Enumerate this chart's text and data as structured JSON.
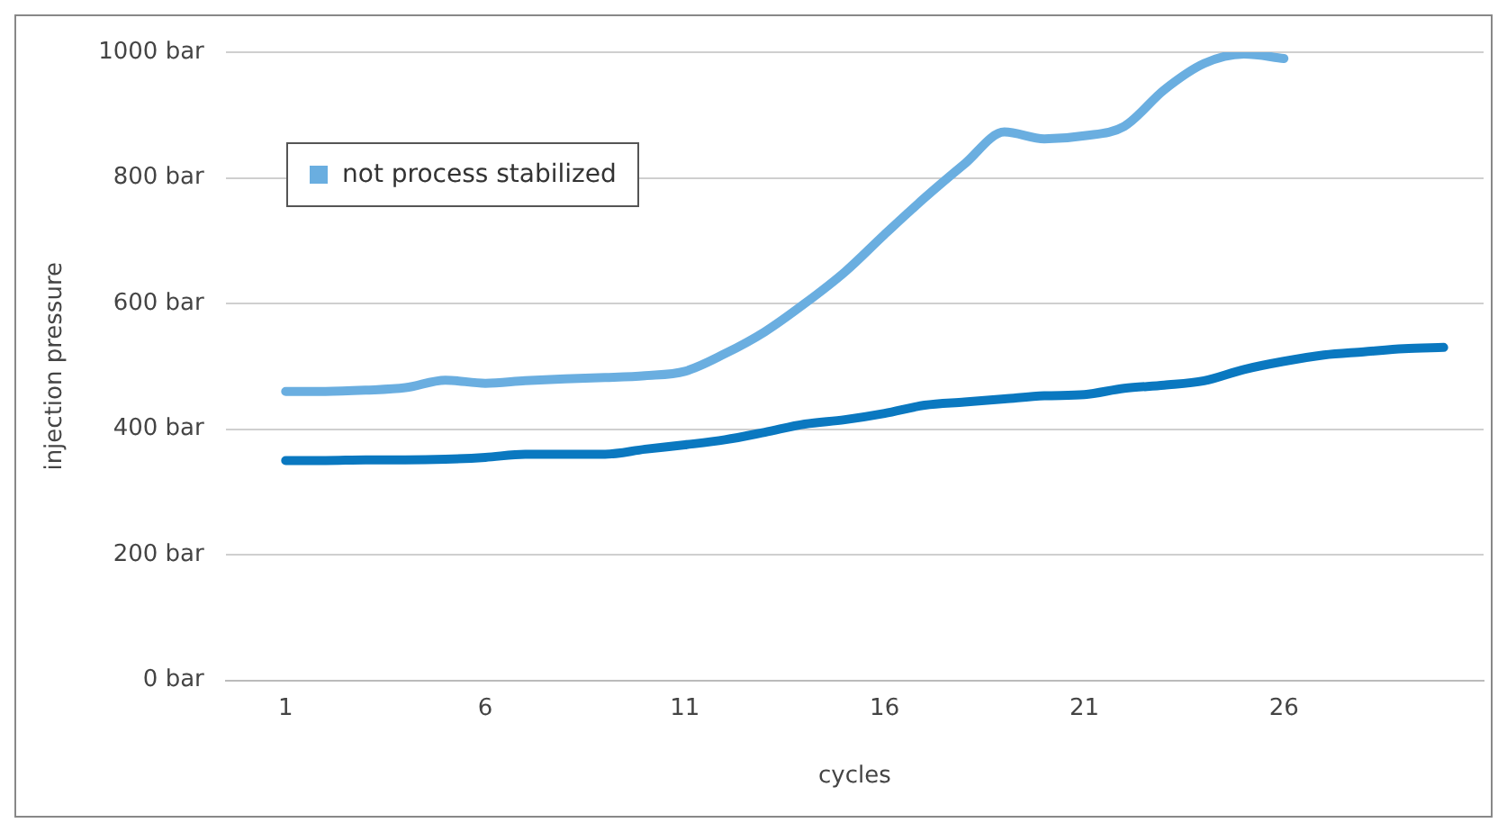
{
  "chart_data": {
    "type": "line",
    "xlabel": "cycles",
    "ylabel": "injection pressure",
    "xlim": [
      -0.5,
      31
    ],
    "xticks": [
      1,
      6,
      11,
      16,
      21,
      26
    ],
    "ylim": [
      0,
      1000
    ],
    "yticks": [
      {
        "value": 0,
        "label": "0 bar"
      },
      {
        "value": 200,
        "label": "200 bar"
      },
      {
        "value": 400,
        "label": "400 bar"
      },
      {
        "value": 600,
        "label": "600 bar"
      },
      {
        "value": 800,
        "label": "800 bar"
      },
      {
        "value": 1000,
        "label": "1000 bar"
      }
    ],
    "grid": "y",
    "legend": "top left",
    "marker": "none",
    "line_style": "solid",
    "series": [
      {
        "name": "not process stabilized",
        "color": "#6aaee0",
        "x": [
          1,
          2,
          3,
          4,
          5,
          6,
          7,
          8,
          9,
          10,
          11,
          12,
          13,
          14,
          15,
          16,
          17,
          18,
          19,
          20,
          21,
          22,
          23,
          24,
          25,
          26
        ],
        "values": [
          460,
          460,
          462,
          466,
          478,
          473,
          477,
          480,
          482,
          485,
          492,
          520,
          555,
          600,
          650,
          710,
          768,
          822,
          873,
          862,
          867,
          882,
          940,
          982,
          997,
          990
        ]
      },
      {
        "color": "#0a78c0",
        "x": [
          1,
          2,
          3,
          4,
          5,
          6,
          7,
          8,
          9,
          10,
          11,
          12,
          13,
          14,
          15,
          16,
          17,
          18,
          19,
          20,
          21,
          22,
          23,
          24,
          25,
          26,
          27,
          28,
          29,
          30
        ],
        "values": [
          350,
          350,
          351,
          351,
          352,
          355,
          360,
          360,
          360,
          368,
          375,
          383,
          395,
          408,
          415,
          425,
          438,
          443,
          448,
          453,
          455,
          465,
          470,
          477,
          495,
          508,
          518,
          523,
          528,
          530
        ]
      }
    ]
  }
}
